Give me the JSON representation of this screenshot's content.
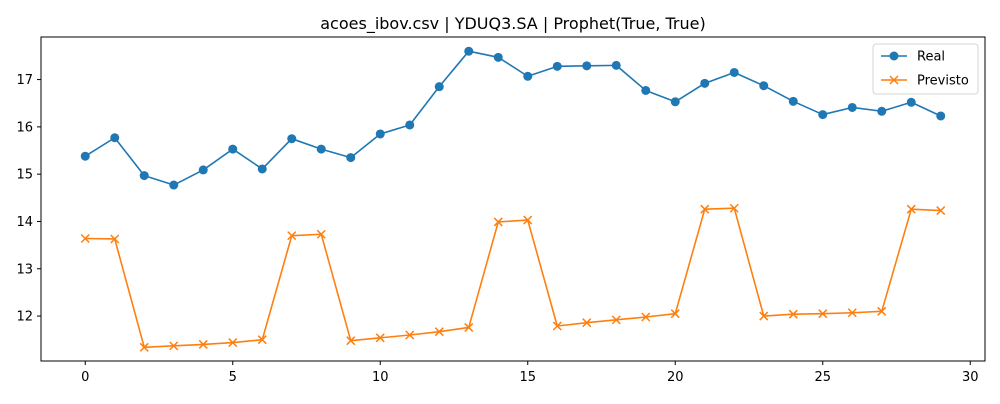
{
  "chart_data": {
    "type": "line",
    "title": "acoes_ibov.csv | YDUQ3.SA | Prophet(True, True)",
    "xlabel": "",
    "ylabel": "",
    "xlim": [
      -1.5,
      30.5
    ],
    "ylim": [
      11.05,
      17.9
    ],
    "xticks": [
      0,
      5,
      10,
      15,
      20,
      25,
      30
    ],
    "yticks": [
      12,
      13,
      14,
      15,
      16,
      17
    ],
    "grid": false,
    "legend_position": "top-right",
    "x": [
      0,
      1,
      2,
      3,
      4,
      5,
      6,
      7,
      8,
      9,
      10,
      11,
      12,
      13,
      14,
      15,
      16,
      17,
      18,
      19,
      20,
      21,
      22,
      23,
      24,
      25,
      26,
      27,
      28,
      29
    ],
    "series": [
      {
        "name": "Real",
        "color": "#1f77b4",
        "marker": "circle",
        "values": [
          15.38,
          15.77,
          14.97,
          14.77,
          15.09,
          15.53,
          15.11,
          15.75,
          15.53,
          15.35,
          15.85,
          16.04,
          16.85,
          17.6,
          17.47,
          17.07,
          17.28,
          17.29,
          17.3,
          16.77,
          16.53,
          16.92,
          17.15,
          16.87,
          16.54,
          16.26,
          16.41,
          16.33,
          16.52,
          16.23
        ]
      },
      {
        "name": "Previsto",
        "color": "#ff7f0e",
        "marker": "x",
        "values": [
          13.64,
          13.63,
          11.34,
          11.37,
          11.4,
          11.44,
          11.5,
          13.7,
          13.73,
          11.48,
          11.54,
          11.6,
          11.67,
          11.76,
          13.99,
          14.03,
          11.79,
          11.86,
          11.92,
          11.98,
          12.05,
          14.26,
          14.28,
          12.0,
          12.04,
          12.05,
          12.07,
          12.1,
          14.26,
          14.23
        ]
      }
    ]
  }
}
